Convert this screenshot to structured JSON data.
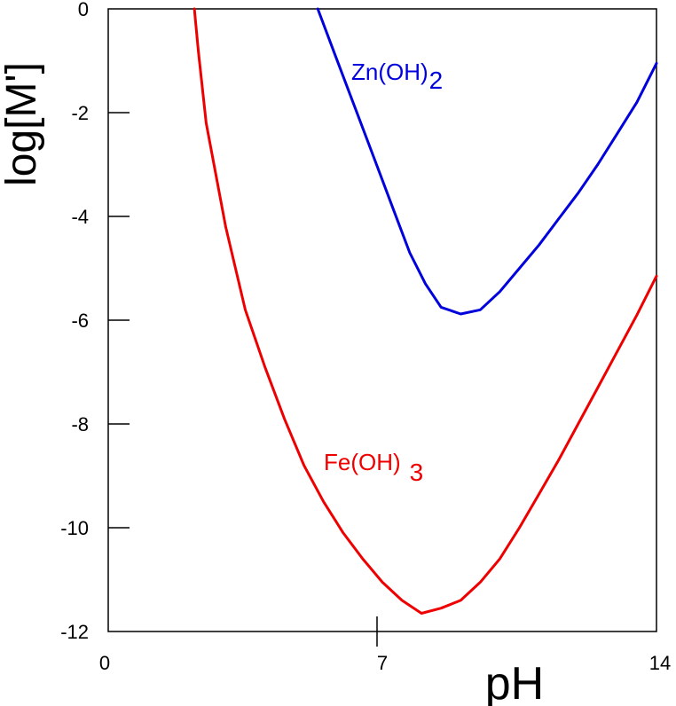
{
  "chart_data": {
    "type": "line",
    "title": "",
    "xlabel": "pH",
    "ylabel": "log[M']",
    "xlim": [
      0,
      14
    ],
    "ylim": [
      -12,
      0
    ],
    "x_ticks": [
      {
        "value": 0,
        "label": "0"
      },
      {
        "value": 7,
        "label": "7"
      },
      {
        "value": 14,
        "label": "14"
      }
    ],
    "y_ticks": [
      {
        "value": 0,
        "label": "0"
      },
      {
        "value": -2,
        "label": "-2"
      },
      {
        "value": -4,
        "label": "-4"
      },
      {
        "value": -6,
        "label": "-6"
      },
      {
        "value": -8,
        "label": "-8"
      },
      {
        "value": -10,
        "label": "-10"
      },
      {
        "value": -12,
        "label": "-12"
      }
    ],
    "grid": false,
    "series": [
      {
        "name": "Zn(OH)2",
        "label_main": "Zn(OH)",
        "label_sub": "2",
        "color": "#0000dd",
        "x": [
          5.35,
          5.8,
          6.3,
          6.8,
          7.3,
          7.7,
          8.1,
          8.5,
          9.0,
          9.5,
          10.0,
          10.5,
          11.0,
          11.5,
          12.0,
          12.5,
          13.0,
          13.5,
          14.0
        ],
        "y": [
          0.0,
          -0.9,
          -1.9,
          -2.9,
          -3.9,
          -4.7,
          -5.3,
          -5.75,
          -5.88,
          -5.8,
          -5.45,
          -5.0,
          -4.55,
          -4.05,
          -3.55,
          -3.0,
          -2.4,
          -1.8,
          -1.05
        ]
      },
      {
        "name": "Fe(OH)3",
        "label_main": "Fe(OH)",
        "label_sub": "3",
        "color": "#ee0000",
        "x": [
          2.2,
          2.3,
          2.5,
          3.0,
          3.5,
          4.0,
          4.5,
          5.0,
          5.5,
          6.0,
          6.5,
          7.0,
          7.5,
          8.0,
          8.5,
          9.0,
          9.5,
          10.0,
          10.5,
          11.0,
          11.5,
          12.0,
          12.5,
          13.0,
          13.5,
          14.0
        ],
        "y": [
          0.0,
          -0.8,
          -2.2,
          -4.2,
          -5.8,
          -6.9,
          -7.9,
          -8.8,
          -9.5,
          -10.1,
          -10.6,
          -11.05,
          -11.4,
          -11.65,
          -11.55,
          -11.4,
          -11.05,
          -10.6,
          -10.0,
          -9.35,
          -8.7,
          -8.0,
          -7.3,
          -6.6,
          -5.9,
          -5.15
        ]
      }
    ]
  }
}
